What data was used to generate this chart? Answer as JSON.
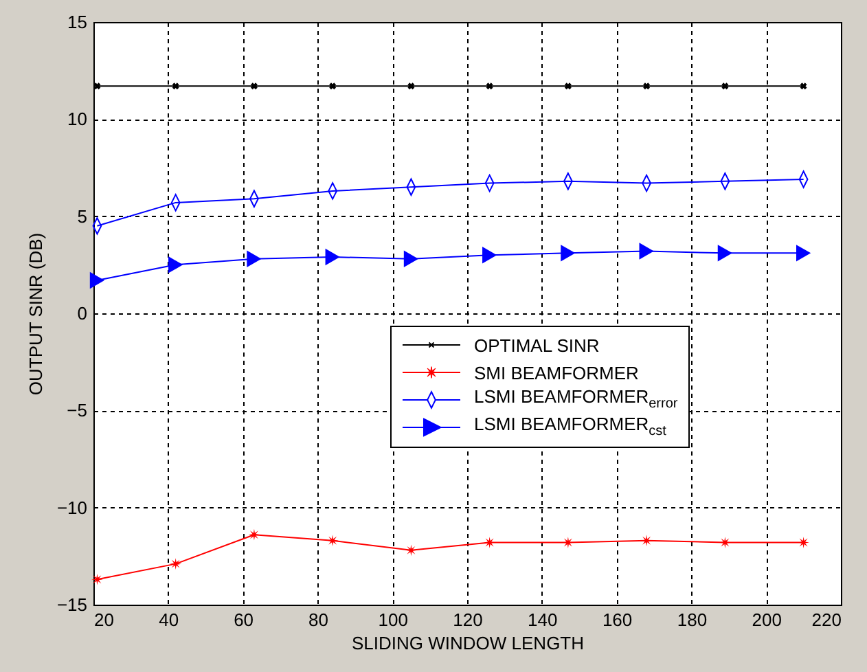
{
  "chart_data": {
    "type": "line",
    "xlabel": "SLIDING WINDOW LENGTH",
    "ylabel": "OUTPUT SINR (DB)",
    "x": [
      21,
      42,
      63,
      84,
      105,
      126,
      147,
      168,
      189,
      210
    ],
    "xlim": [
      20,
      220
    ],
    "xticks": [
      20,
      40,
      60,
      80,
      100,
      120,
      140,
      160,
      180,
      200,
      220
    ],
    "ylim": [
      -15,
      15
    ],
    "yticks": [
      -15,
      -10,
      -5,
      0,
      5,
      10,
      15
    ],
    "grid": true,
    "legend": "right",
    "series": [
      {
        "name": "OPTIMAL SINR",
        "color": "#000000",
        "marker": "cross",
        "values": [
          11.7,
          11.7,
          11.7,
          11.7,
          11.7,
          11.7,
          11.7,
          11.7,
          11.7,
          11.7
        ]
      },
      {
        "name": "SMI BEAMFORMER",
        "color": "#ff0000",
        "marker": "star",
        "values": [
          -13.7,
          -12.9,
          -11.4,
          -11.7,
          -12.2,
          -11.8,
          -11.8,
          -11.7,
          -11.8,
          -11.8
        ]
      },
      {
        "name": "LSMI BEAMFORMER$_{error}$",
        "color": "#0000ff",
        "marker": "diamond",
        "values": [
          4.5,
          5.7,
          5.9,
          6.3,
          6.5,
          6.7,
          6.8,
          6.7,
          6.8,
          6.9
        ]
      },
      {
        "name": "LSMI BEAMFORMER$_{cst}$",
        "color": "#0000ff",
        "marker": "triangle",
        "values": [
          1.7,
          2.5,
          2.8,
          2.9,
          2.8,
          3.0,
          3.1,
          3.2,
          3.1,
          3.1
        ]
      }
    ]
  }
}
